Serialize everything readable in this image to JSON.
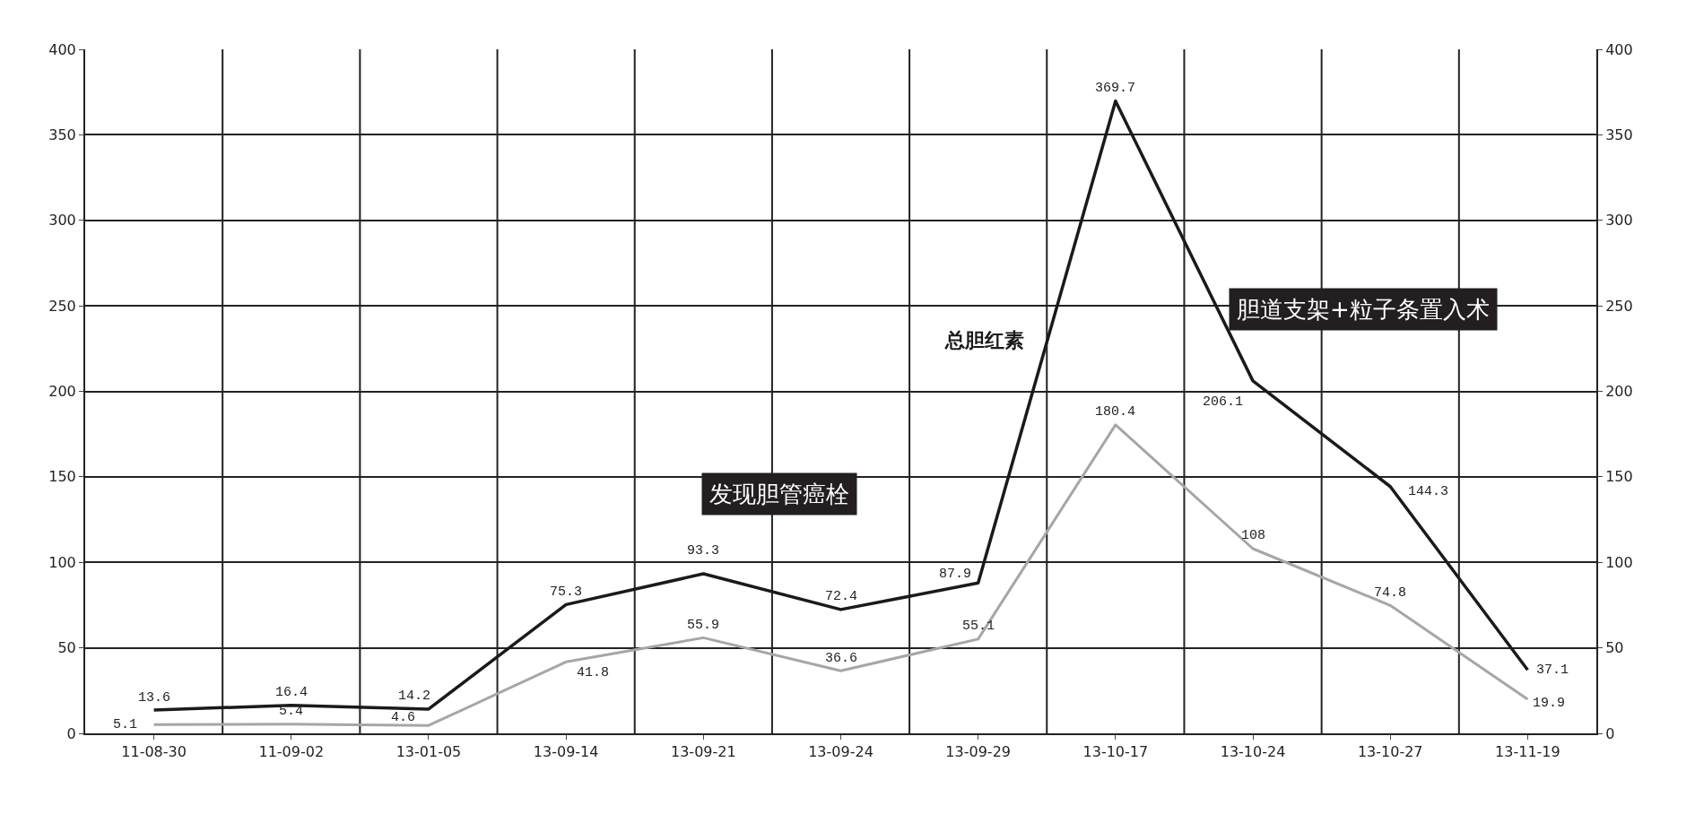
{
  "chart_data": {
    "type": "line",
    "categories": [
      "11-08-30",
      "11-09-02",
      "13-01-05",
      "13-09-14",
      "13-09-21",
      "13-09-24",
      "13-09-29",
      "13-10-17",
      "13-10-24",
      "13-10-27",
      "13-11-19"
    ],
    "series": [
      {
        "name": "总胆红素",
        "color": "#1a1a1a",
        "values": [
          13.6,
          16.4,
          14.2,
          75.3,
          93.3,
          72.4,
          87.9,
          369.7,
          206.1,
          144.3,
          37.1
        ]
      },
      {
        "color": "#a6a6a6",
        "values": [
          5.1,
          5.4,
          4.6,
          41.8,
          55.9,
          36.6,
          55.1,
          180.4,
          108,
          74.8,
          19.9
        ]
      }
    ],
    "annotations": [
      "发现胆管癌栓",
      "胆道支架+粒子条置入术"
    ],
    "ylim": [
      0,
      400
    ],
    "yticks": [
      0,
      50,
      100,
      150,
      200,
      250,
      300,
      350,
      400
    ],
    "y2lim": [
      0,
      400
    ],
    "y2ticks": [
      0,
      50,
      100,
      150,
      200,
      250,
      300,
      350,
      400
    ],
    "data_labels": true,
    "grid": true,
    "legend": false,
    "marker": "none",
    "line_style": "solid"
  }
}
